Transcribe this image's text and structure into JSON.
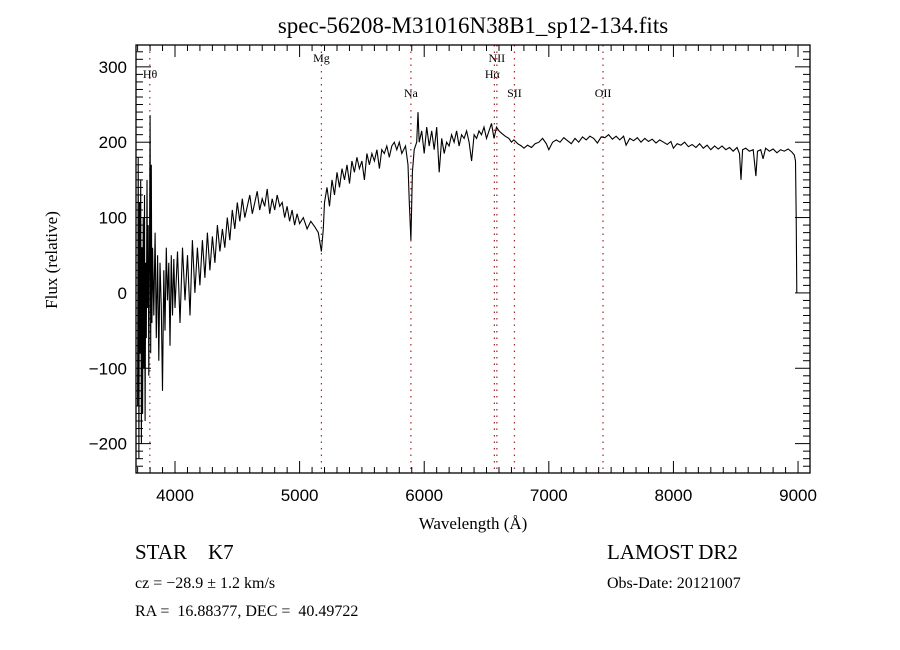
{
  "chart_data": {
    "type": "line",
    "title": "spec-56208-M31016N38B1_sp12-134.fits",
    "xlabel": "Wavelength (Å)",
    "ylabel": "Flux (relative)",
    "xlim": [
      3687,
      9096
    ],
    "ylim": [
      -239,
      329
    ],
    "xticks": [
      4000,
      5000,
      6000,
      7000,
      8000,
      9000
    ],
    "xtick_labels": [
      "4000",
      "5000",
      "6000",
      "7000",
      "8000",
      "9000"
    ],
    "yticks": [
      -200,
      -100,
      0,
      100,
      200,
      300
    ],
    "ytick_labels": [
      "−200",
      "−100",
      "0",
      "100",
      "200",
      "300"
    ],
    "grid": false,
    "line_color": "#000000",
    "marker_color": "#a02828",
    "lines": [
      {
        "label": "Hθ",
        "wavelength": 3798
      },
      {
        "label": "Mg",
        "wavelength": 5175
      },
      {
        "label": "Na",
        "wavelength": 5893
      },
      {
        "label": "NII",
        "wavelength": 6583
      },
      {
        "label": "Hα",
        "wavelength": 6563
      },
      {
        "label": "SII",
        "wavelength": 6724
      },
      {
        "label": "OII",
        "wavelength": 7435
      }
    ],
    "series": [
      {
        "name": "flux",
        "points": [
          [
            3700,
            -150
          ],
          [
            3705,
            180
          ],
          [
            3710,
            -220
          ],
          [
            3715,
            120
          ],
          [
            3720,
            -80
          ],
          [
            3725,
            150
          ],
          [
            3730,
            -200
          ],
          [
            3735,
            60
          ],
          [
            3740,
            -160
          ],
          [
            3745,
            100
          ],
          [
            3750,
            -100
          ],
          [
            3755,
            130
          ],
          [
            3760,
            -170
          ],
          [
            3765,
            40
          ],
          [
            3770,
            -60
          ],
          [
            3775,
            150
          ],
          [
            3780,
            -20
          ],
          [
            3785,
            90
          ],
          [
            3790,
            -110
          ],
          [
            3795,
            60
          ],
          [
            3800,
            236
          ],
          [
            3805,
            -80
          ],
          [
            3810,
            170
          ],
          [
            3815,
            -40
          ],
          [
            3820,
            60
          ],
          [
            3830,
            -30
          ],
          [
            3840,
            80
          ],
          [
            3850,
            -60
          ],
          [
            3860,
            50
          ],
          [
            3870,
            -90
          ],
          [
            3880,
            40
          ],
          [
            3890,
            -20
          ],
          [
            3900,
            -130
          ],
          [
            3910,
            30
          ],
          [
            3920,
            -50
          ],
          [
            3930,
            60
          ],
          [
            3940,
            -10
          ],
          [
            3950,
            40
          ],
          [
            3960,
            -70
          ],
          [
            3970,
            50
          ],
          [
            3980,
            -30
          ],
          [
            3990,
            45
          ],
          [
            4000,
            -20
          ],
          [
            4020,
            55
          ],
          [
            4040,
            -40
          ],
          [
            4060,
            60
          ],
          [
            4080,
            -10
          ],
          [
            4100,
            50
          ],
          [
            4120,
            -30
          ],
          [
            4140,
            70
          ],
          [
            4160,
            0
          ],
          [
            4180,
            60
          ],
          [
            4200,
            10
          ],
          [
            4220,
            70
          ],
          [
            4240,
            20
          ],
          [
            4260,
            80
          ],
          [
            4280,
            30
          ],
          [
            4300,
            75
          ],
          [
            4320,
            40
          ],
          [
            4340,
            90
          ],
          [
            4360,
            55
          ],
          [
            4380,
            85
          ],
          [
            4400,
            60
          ],
          [
            4420,
            100
          ],
          [
            4440,
            70
          ],
          [
            4460,
            110
          ],
          [
            4480,
            85
          ],
          [
            4500,
            120
          ],
          [
            4520,
            95
          ],
          [
            4540,
            125
          ],
          [
            4560,
            100
          ],
          [
            4580,
            115
          ],
          [
            4600,
            130
          ],
          [
            4620,
            105
          ],
          [
            4640,
            120
          ],
          [
            4660,
            135
          ],
          [
            4680,
            110
          ],
          [
            4700,
            125
          ],
          [
            4720,
            115
          ],
          [
            4740,
            138
          ],
          [
            4760,
            105
          ],
          [
            4780,
            125
          ],
          [
            4800,
            110
          ],
          [
            4820,
            130
          ],
          [
            4840,
            115
          ],
          [
            4860,
            120
          ],
          [
            4880,
            100
          ],
          [
            4900,
            115
          ],
          [
            4920,
            95
          ],
          [
            4940,
            110
          ],
          [
            4960,
            90
          ],
          [
            4980,
            105
          ],
          [
            5000,
            92
          ],
          [
            5030,
            100
          ],
          [
            5060,
            85
          ],
          [
            5090,
            95
          ],
          [
            5120,
            88
          ],
          [
            5150,
            80
          ],
          [
            5175,
            55
          ],
          [
            5190,
            85
          ],
          [
            5200,
            120
          ],
          [
            5220,
            140
          ],
          [
            5240,
            115
          ],
          [
            5260,
            150
          ],
          [
            5280,
            130
          ],
          [
            5300,
            160
          ],
          [
            5320,
            140
          ],
          [
            5340,
            165
          ],
          [
            5360,
            150
          ],
          [
            5380,
            170
          ],
          [
            5400,
            145
          ],
          [
            5420,
            175
          ],
          [
            5440,
            160
          ],
          [
            5460,
            180
          ],
          [
            5480,
            165
          ],
          [
            5500,
            175
          ],
          [
            5520,
            150
          ],
          [
            5540,
            185
          ],
          [
            5560,
            170
          ],
          [
            5580,
            185
          ],
          [
            5600,
            175
          ],
          [
            5620,
            190
          ],
          [
            5640,
            165
          ],
          [
            5660,
            190
          ],
          [
            5680,
            185
          ],
          [
            5700,
            195
          ],
          [
            5720,
            180
          ],
          [
            5740,
            195
          ],
          [
            5760,
            200
          ],
          [
            5780,
            190
          ],
          [
            5800,
            200
          ],
          [
            5820,
            185
          ],
          [
            5850,
            195
          ],
          [
            5870,
            170
          ],
          [
            5880,
            120
          ],
          [
            5893,
            70
          ],
          [
            5905,
            160
          ],
          [
            5920,
            190
          ],
          [
            5940,
            200
          ],
          [
            5950,
            240
          ],
          [
            5960,
            200
          ],
          [
            5980,
            215
          ],
          [
            6000,
            185
          ],
          [
            6020,
            220
          ],
          [
            6040,
            195
          ],
          [
            6060,
            215
          ],
          [
            6080,
            190
          ],
          [
            6100,
            220
          ],
          [
            6120,
            160
          ],
          [
            6140,
            205
          ],
          [
            6160,
            185
          ],
          [
            6180,
            200
          ],
          [
            6200,
            195
          ],
          [
            6220,
            210
          ],
          [
            6240,
            200
          ],
          [
            6260,
            215
          ],
          [
            6280,
            195
          ],
          [
            6300,
            210
          ],
          [
            6320,
            205
          ],
          [
            6340,
            215
          ],
          [
            6360,
            200
          ],
          [
            6380,
            175
          ],
          [
            6400,
            210
          ],
          [
            6420,
            205
          ],
          [
            6440,
            215
          ],
          [
            6460,
            210
          ],
          [
            6480,
            220
          ],
          [
            6500,
            205
          ],
          [
            6520,
            215
          ],
          [
            6540,
            225
          ],
          [
            6560,
            205
          ],
          [
            6580,
            220
          ],
          [
            6600,
            215
          ],
          [
            6620,
            212
          ],
          [
            6650,
            208
          ],
          [
            6680,
            205
          ],
          [
            6700,
            200
          ],
          [
            6720,
            203
          ],
          [
            6750,
            198
          ],
          [
            6780,
            195
          ],
          [
            6800,
            192
          ],
          [
            6830,
            196
          ],
          [
            6860,
            193
          ],
          [
            6890,
            198
          ],
          [
            6920,
            200
          ],
          [
            6950,
            205
          ],
          [
            6980,
            198
          ],
          [
            7000,
            190
          ],
          [
            7030,
            200
          ],
          [
            7060,
            203
          ],
          [
            7090,
            200
          ],
          [
            7120,
            206
          ],
          [
            7150,
            202
          ],
          [
            7180,
            198
          ],
          [
            7210,
            205
          ],
          [
            7240,
            200
          ],
          [
            7270,
            207
          ],
          [
            7300,
            203
          ],
          [
            7330,
            208
          ],
          [
            7360,
            205
          ],
          [
            7390,
            199
          ],
          [
            7420,
            207
          ],
          [
            7450,
            206
          ],
          [
            7480,
            210
          ],
          [
            7510,
            204
          ],
          [
            7540,
            208
          ],
          [
            7570,
            203
          ],
          [
            7600,
            208
          ],
          [
            7620,
            196
          ],
          [
            7650,
            205
          ],
          [
            7680,
            202
          ],
          [
            7710,
            206
          ],
          [
            7740,
            200
          ],
          [
            7770,
            205
          ],
          [
            7800,
            201
          ],
          [
            7830,
            204
          ],
          [
            7860,
            199
          ],
          [
            7890,
            203
          ],
          [
            7920,
            200
          ],
          [
            7950,
            197
          ],
          [
            7980,
            201
          ],
          [
            8000,
            192
          ],
          [
            8030,
            198
          ],
          [
            8060,
            196
          ],
          [
            8090,
            200
          ],
          [
            8120,
            194
          ],
          [
            8150,
            197
          ],
          [
            8180,
            193
          ],
          [
            8210,
            198
          ],
          [
            8240,
            192
          ],
          [
            8270,
            196
          ],
          [
            8300,
            190
          ],
          [
            8330,
            195
          ],
          [
            8360,
            191
          ],
          [
            8390,
            195
          ],
          [
            8420,
            190
          ],
          [
            8450,
            193
          ],
          [
            8480,
            188
          ],
          [
            8510,
            193
          ],
          [
            8530,
            185
          ],
          [
            8542,
            150
          ],
          [
            8555,
            190
          ],
          [
            8580,
            192
          ],
          [
            8610,
            188
          ],
          [
            8640,
            190
          ],
          [
            8662,
            155
          ],
          [
            8675,
            188
          ],
          [
            8700,
            190
          ],
          [
            8720,
            178
          ],
          [
            8740,
            192
          ],
          [
            8770,
            188
          ],
          [
            8800,
            191
          ],
          [
            8830,
            186
          ],
          [
            8860,
            190
          ],
          [
            8890,
            188
          ],
          [
            8920,
            191
          ],
          [
            8950,
            187
          ],
          [
            8970,
            183
          ],
          [
            8980,
            175
          ],
          [
            8985,
            100
          ],
          [
            8990,
            0
          ]
        ]
      }
    ]
  },
  "info": {
    "class": "STAR    K7",
    "cz": "cz = −28.9 ± 1.2 km/s",
    "coords": "RA =  16.88377, DEC =  40.49722",
    "survey": "LAMOST DR2",
    "obs_date": "Obs-Date: 20121007"
  }
}
